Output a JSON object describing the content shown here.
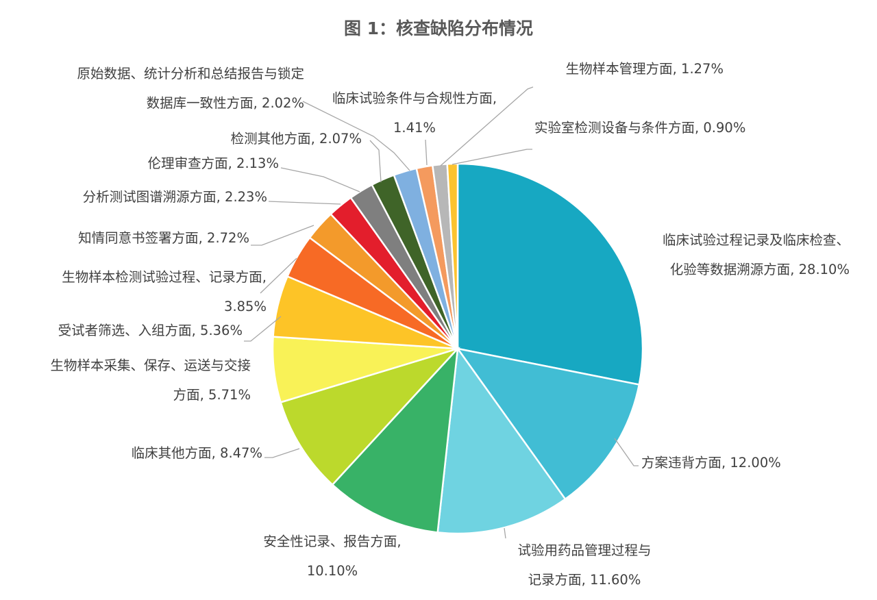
{
  "chart_data": {
    "type": "pie",
    "title": "图 1：核查缺陷分布情况",
    "start_angle_deg": 0,
    "direction": "clockwise",
    "slices": [
      {
        "label_lines": [
          "临床试验过程记录及临床检查、",
          "化验等数据溯源方面, 28.10%"
        ],
        "category": "临床试验过程记录及临床检查、化验等数据溯源方面",
        "value": 28.1,
        "color": "#17a8c2"
      },
      {
        "label_lines": [
          "方案违背方面, 12.00%"
        ],
        "category": "方案违背方面",
        "value": 12.0,
        "color": "#41bdd4"
      },
      {
        "label_lines": [
          "试验用药品管理过程与",
          "记录方面, 11.60%"
        ],
        "category": "试验用药品管理过程与记录方面",
        "value": 11.6,
        "color": "#6fd3e1"
      },
      {
        "label_lines": [
          "安全性记录、报告方面,",
          "10.10%"
        ],
        "category": "安全性记录、报告方面",
        "value": 10.1,
        "color": "#38b267"
      },
      {
        "label_lines": [
          "临床其他方面, 8.47%"
        ],
        "category": "临床其他方面",
        "value": 8.47,
        "color": "#bcd92c"
      },
      {
        "label_lines": [
          "生物样本采集、保存、运送与交接",
          "方面, 5.71%"
        ],
        "category": "生物样本采集、保存、运送与交接方面",
        "value": 5.71,
        "color": "#f9f257"
      },
      {
        "label_lines": [
          "受试者筛选、入组方面, 5.36%"
        ],
        "category": "受试者筛选、入组方面",
        "value": 5.36,
        "color": "#fdc427"
      },
      {
        "label_lines": [
          "生物样本检测试验过程、记录方面,",
          "3.85%"
        ],
        "category": "生物样本检测试验过程、记录方面",
        "value": 3.85,
        "color": "#f76a25"
      },
      {
        "label_lines": [
          "知情同意书签署方面, 2.72%"
        ],
        "category": "知情同意书签署方面",
        "value": 2.72,
        "color": "#f39a2b"
      },
      {
        "label_lines": [
          "分析测试图谱溯源方面, 2.23%"
        ],
        "category": "分析测试图谱溯源方面",
        "value": 2.23,
        "color": "#e31e2c"
      },
      {
        "label_lines": [
          "伦理审查方面, 2.13%"
        ],
        "category": "伦理审查方面",
        "value": 2.13,
        "color": "#7f7f7f"
      },
      {
        "label_lines": [
          "检测其他方面, 2.07%"
        ],
        "category": "检测其他方面",
        "value": 2.07,
        "color": "#3f6428"
      },
      {
        "label_lines": [
          "原始数据、统计分析和总结报告与锁定",
          "数据库一致性方面, 2.02%"
        ],
        "category": "原始数据、统计分析和总结报告与锁定数据库一致性方面",
        "value": 2.02,
        "color": "#7fb0e0"
      },
      {
        "label_lines": [
          "临床试验条件与合规性方面,",
          "1.41%"
        ],
        "category": "临床试验条件与合规性方面",
        "value": 1.41,
        "color": "#f49a5e"
      },
      {
        "label_lines": [
          "生物样本管理方面, 1.27%"
        ],
        "category": "生物样本管理方面",
        "value": 1.27,
        "color": "#b7b7b7"
      },
      {
        "label_lines": [
          "实验室检测设备与条件方面, 0.90%"
        ],
        "category": "实验室检测设备与条件方面",
        "value": 0.9,
        "color": "#fcc32f"
      }
    ],
    "legend": "none",
    "data_labels": "outside with leader lines"
  }
}
